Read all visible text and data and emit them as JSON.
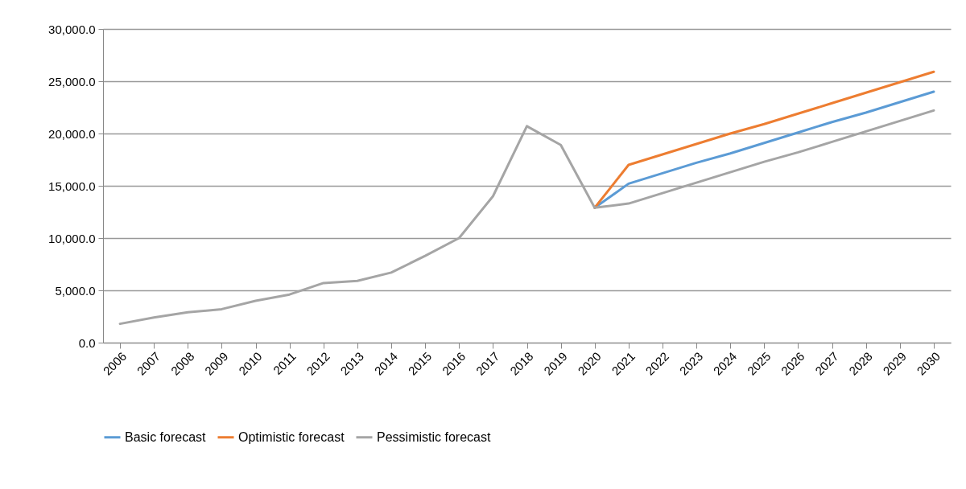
{
  "chart_data": {
    "type": "line",
    "categories": [
      "2006",
      "2007",
      "2008",
      "2009",
      "2010",
      "2011",
      "2012",
      "2013",
      "2014",
      "2015",
      "2016",
      "2017",
      "2018",
      "2019",
      "2020",
      "2021",
      "2022",
      "2023",
      "2024",
      "2025",
      "2026",
      "2027",
      "2028",
      "2029",
      "2030"
    ],
    "series": [
      {
        "name": "Basic forecast",
        "color": "#5b9bd5",
        "values": [
          null,
          null,
          null,
          null,
          null,
          null,
          null,
          null,
          null,
          null,
          null,
          null,
          null,
          null,
          12900,
          15200,
          16200,
          17200,
          18100,
          19100,
          20100,
          21100,
          22000,
          23000,
          24000
        ]
      },
      {
        "name": "Optimistic forecast",
        "color": "#ed7d31",
        "values": [
          null,
          null,
          null,
          null,
          null,
          null,
          null,
          null,
          null,
          null,
          null,
          null,
          null,
          null,
          12900,
          17000,
          18000,
          19000,
          20000,
          20900,
          21900,
          22900,
          23900,
          24900,
          25900
        ]
      },
      {
        "name": "Pessimistic forecast",
        "color": "#a5a5a5",
        "values": [
          1800,
          2400,
          2900,
          3200,
          4000,
          4600,
          5700,
          5900,
          6700,
          8300,
          10000,
          14000,
          20700,
          18900,
          12900,
          13300,
          14300,
          15300,
          16300,
          17300,
          18200,
          19200,
          20200,
          21200,
          22200
        ]
      }
    ],
    "ylim": [
      0,
      30000
    ],
    "yticks": [
      {
        "value": 0,
        "label": "0.0"
      },
      {
        "value": 5000,
        "label": "5,000.0"
      },
      {
        "value": 10000,
        "label": "10,000.0"
      },
      {
        "value": 15000,
        "label": "15,000.0"
      },
      {
        "value": 20000,
        "label": "20,000.0"
      },
      {
        "value": 25000,
        "label": "25,000.0"
      },
      {
        "value": 30000,
        "label": "30,000.0"
      }
    ],
    "grid": "y",
    "legend": "bottom",
    "marker": "none",
    "line_style": "solid"
  }
}
